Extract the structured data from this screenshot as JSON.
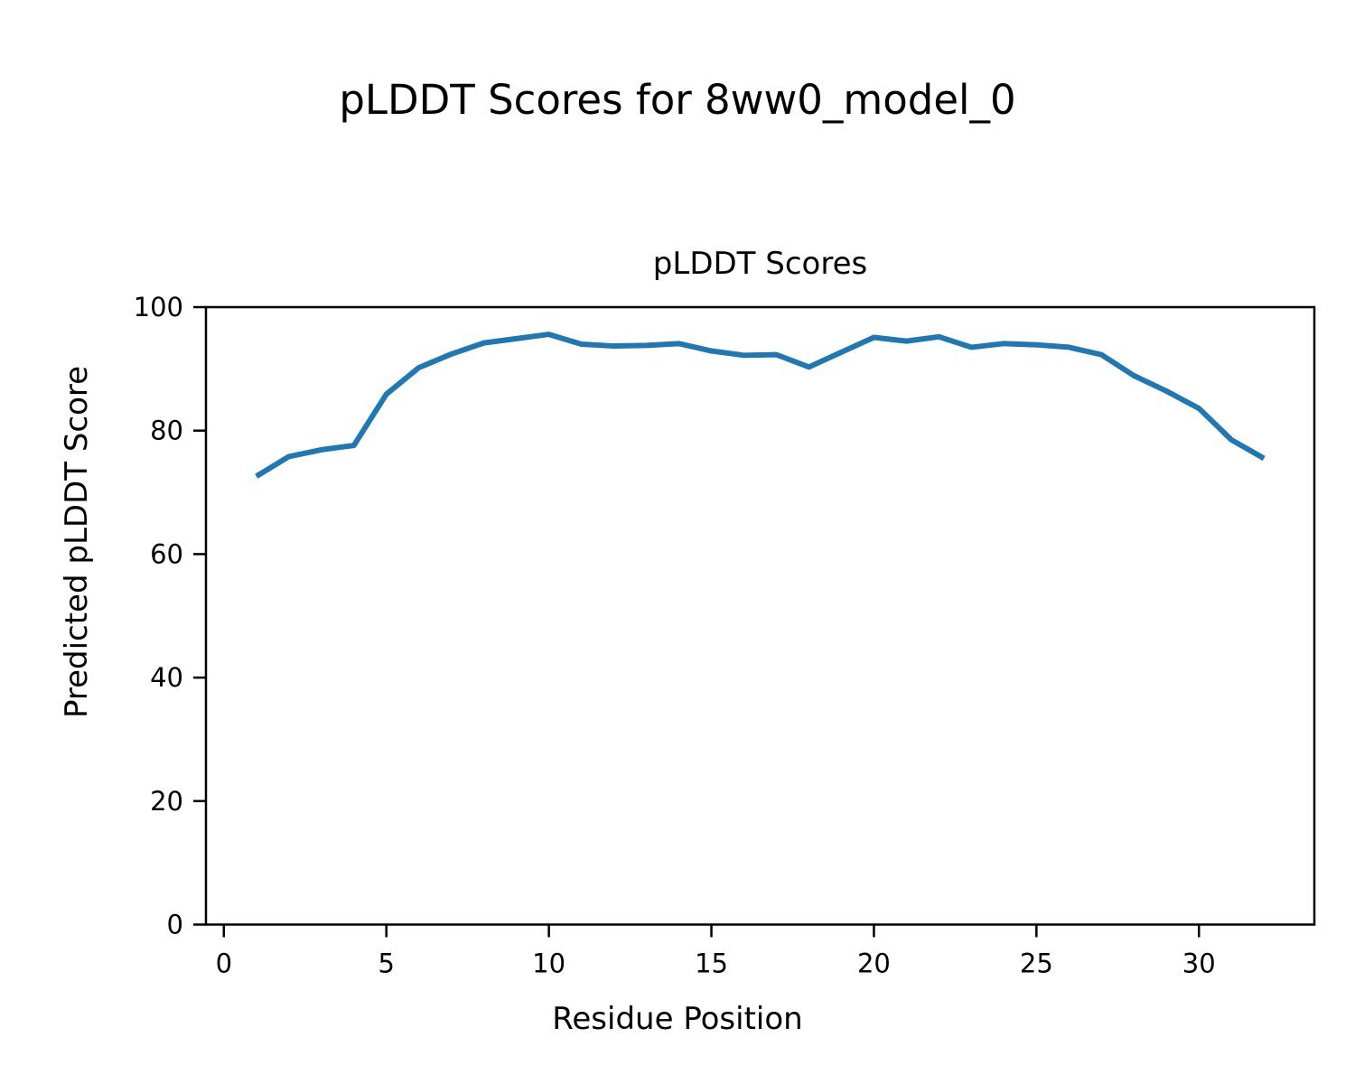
{
  "figure": {
    "title": "pLDDT Scores for 8ww0_model_0",
    "background_color": "#ffffff",
    "text_color": "#000000"
  },
  "chart_data": {
    "type": "line",
    "title": "pLDDT Scores",
    "xlabel": "Residue Position",
    "ylabel": "Predicted pLDDT Score",
    "grid": false,
    "legend": null,
    "xlim": [
      -0.55,
      33.55
    ],
    "ylim": [
      0,
      100
    ],
    "xticks": [
      0,
      5,
      10,
      15,
      20,
      25,
      30
    ],
    "yticks": [
      0,
      20,
      40,
      60,
      80,
      100
    ],
    "x": [
      1,
      2,
      3,
      4,
      5,
      6,
      7,
      8,
      9,
      10,
      11,
      12,
      13,
      14,
      15,
      16,
      17,
      18,
      19,
      20,
      21,
      22,
      23,
      24,
      25,
      26,
      27,
      28,
      29,
      30,
      31,
      32
    ],
    "series": [
      {
        "name": "pLDDT",
        "color": "#1f77b4",
        "values": [
          72.6,
          75.8,
          76.9,
          77.6,
          85.9,
          90.2,
          92.4,
          94.2,
          94.9,
          95.6,
          94.0,
          93.7,
          93.8,
          94.1,
          92.9,
          92.2,
          92.3,
          90.3,
          92.7,
          95.1,
          94.5,
          95.2,
          93.5,
          94.1,
          93.9,
          93.5,
          92.3,
          88.9,
          86.4,
          83.6,
          78.5,
          75.5
        ]
      }
    ]
  }
}
